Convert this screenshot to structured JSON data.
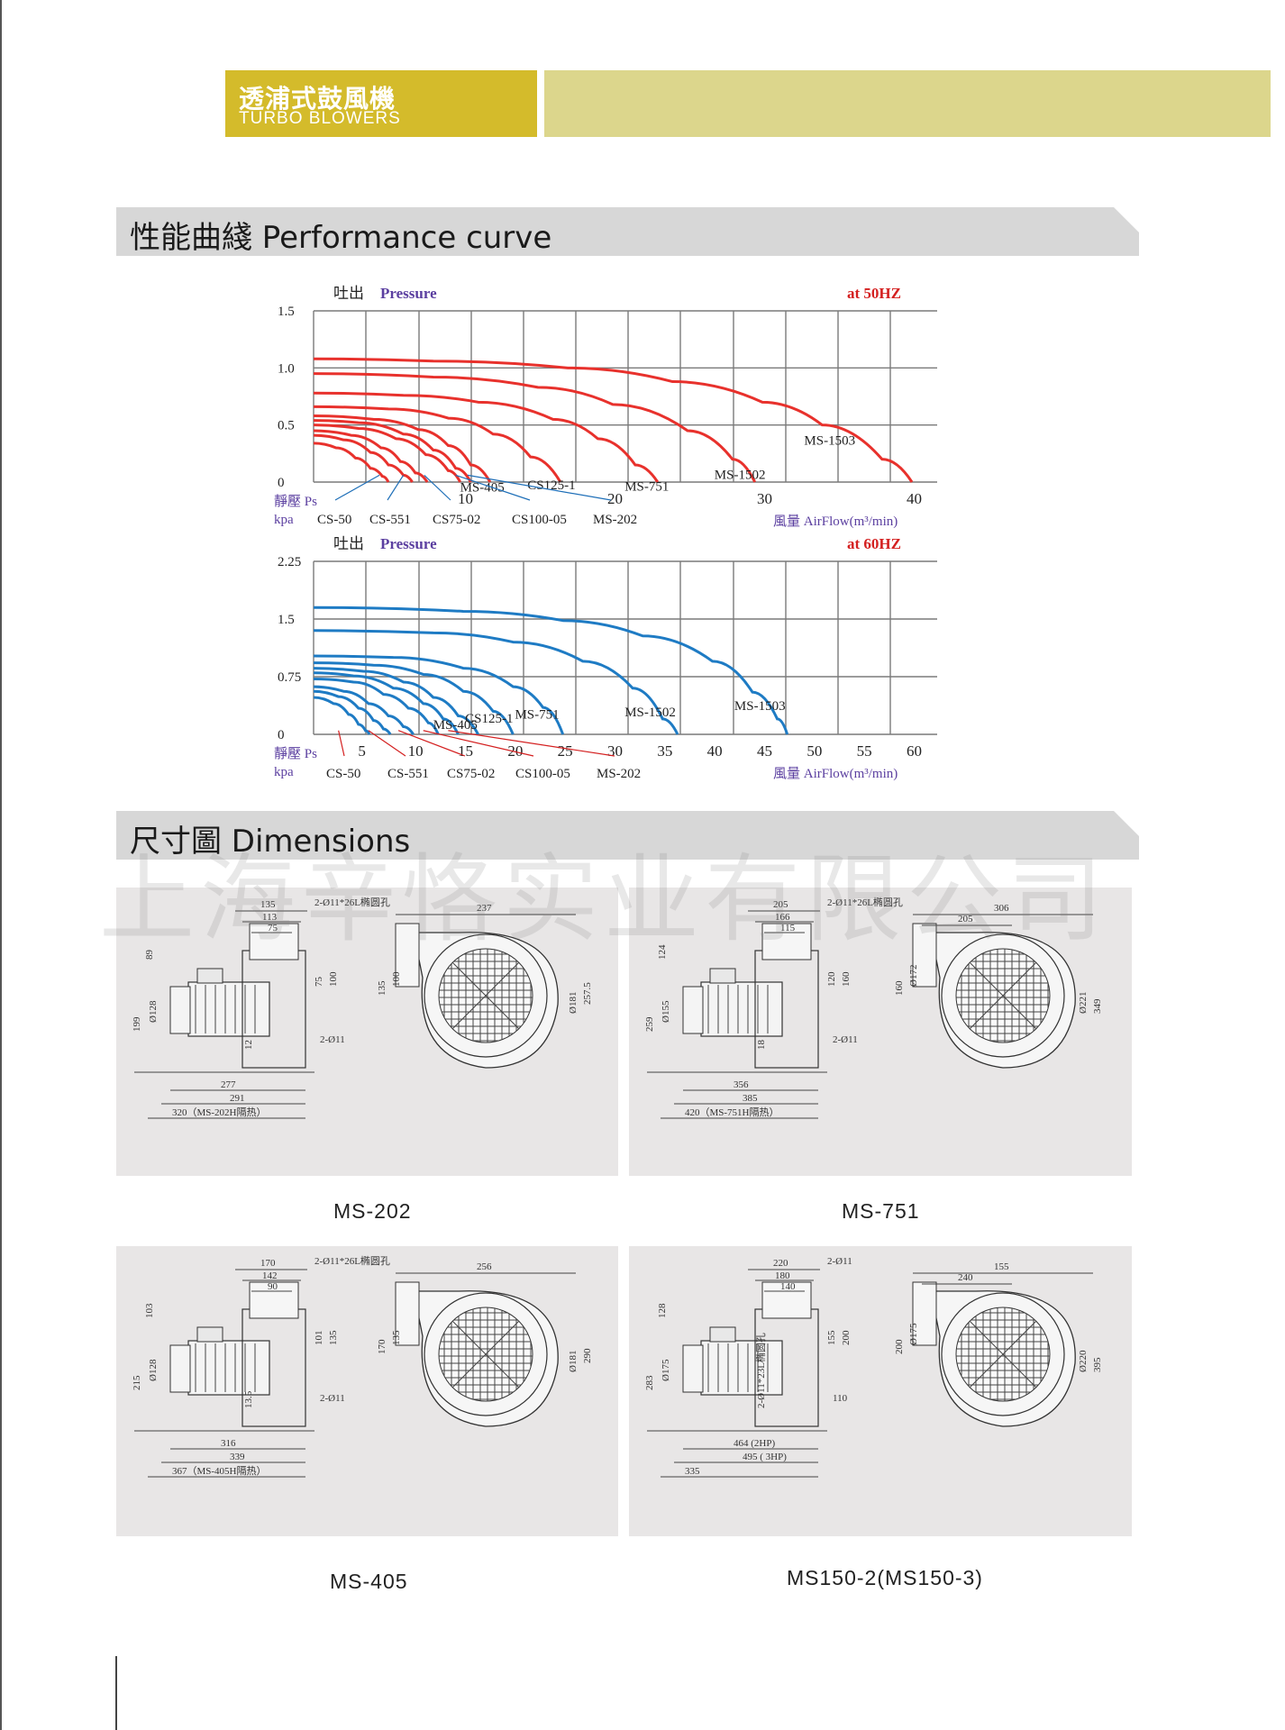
{
  "header": {
    "title_zh": "透浦式鼓風機",
    "title_en": "TURBO BLOWERS"
  },
  "colors": {
    "header_gold": "#d4bb2b",
    "header_light": "#dcd68c",
    "curve_50hz": "#e8312c",
    "curve_60hz": "#1e7bc4",
    "section_bar": "#d7d7d7",
    "panel_bg": "#e8e6e6"
  },
  "sections": {
    "performance": "性能曲綫 Performance curve",
    "dimensions": "尺寸圖 Dimensions"
  },
  "chart_data": [
    {
      "type": "line",
      "title": "at 50HZ",
      "ylabel_zh": "吐出",
      "ylabel_en": "Pressure",
      "y_caption_zh": "靜壓 Ps",
      "y_unit": "kpa",
      "xlabel_zh": "風量",
      "xlabel_en": "AirFlow(m³/min)",
      "xlim": [
        0,
        40
      ],
      "ylim": [
        0,
        1.5
      ],
      "x_ticks": [
        "10",
        "20",
        "30",
        "40"
      ],
      "y_ticks": [
        "1.5",
        "1.0",
        "0.5",
        "0"
      ],
      "grid": true,
      "series": [
        {
          "name": "MS-1503",
          "x": [
            0,
            8,
            17,
            24,
            30,
            34,
            38,
            40
          ],
          "y": [
            1.08,
            1.06,
            1.0,
            0.88,
            0.7,
            0.5,
            0.2,
            0
          ]
        },
        {
          "name": "MS-1502",
          "x": [
            0,
            8,
            15,
            20,
            25,
            28,
            29.5
          ],
          "y": [
            0.95,
            0.92,
            0.83,
            0.68,
            0.45,
            0.2,
            0
          ]
        },
        {
          "name": "MS-751",
          "x": [
            0,
            6,
            11,
            16,
            19,
            21.5,
            23
          ],
          "y": [
            0.78,
            0.76,
            0.7,
            0.55,
            0.38,
            0.15,
            0
          ]
        },
        {
          "name": "CS125-1",
          "x": [
            0,
            5,
            9,
            12,
            14.5,
            16.5
          ],
          "y": [
            0.66,
            0.64,
            0.56,
            0.42,
            0.22,
            0
          ]
        },
        {
          "name": "MS-405",
          "x": [
            0,
            4,
            7,
            9,
            10.5,
            11.8
          ],
          "y": [
            0.58,
            0.55,
            0.46,
            0.32,
            0.15,
            0
          ]
        },
        {
          "name": "MS-202",
          "x": [
            0,
            3,
            6,
            8,
            9.5,
            10.5
          ],
          "y": [
            0.54,
            0.52,
            0.42,
            0.28,
            0.12,
            0
          ]
        },
        {
          "name": "CS100-05",
          "x": [
            0,
            3,
            5.5,
            7.5,
            9,
            9.8
          ],
          "y": [
            0.5,
            0.47,
            0.38,
            0.24,
            0.1,
            0
          ]
        },
        {
          "name": "CS75-02",
          "x": [
            0,
            2.5,
            4.5,
            5.8,
            6.8,
            7.6
          ],
          "y": [
            0.45,
            0.41,
            0.3,
            0.18,
            0.08,
            0
          ]
        },
        {
          "name": "CS-551",
          "x": [
            0,
            2,
            3.8,
            5,
            6,
            6.6
          ],
          "y": [
            0.41,
            0.37,
            0.26,
            0.15,
            0.06,
            0
          ]
        },
        {
          "name": "CS-50",
          "x": [
            0,
            1.5,
            2.8,
            3.8,
            4.6,
            5
          ],
          "y": [
            0.34,
            0.3,
            0.21,
            0.12,
            0.05,
            0
          ]
        }
      ],
      "pointer_labels": [
        "CS-50",
        "CS-551",
        "CS75-02",
        "CS100-05",
        "MS-202"
      ]
    },
    {
      "type": "line",
      "title": "at 60HZ",
      "ylabel_zh": "吐出",
      "ylabel_en": "Pressure",
      "y_caption_zh": "靜壓 Ps",
      "y_unit": "kpa",
      "xlabel_zh": "風量",
      "xlabel_en": "AirFlow(m³/min)",
      "xlim": [
        0,
        60
      ],
      "ylim": [
        0,
        2.25
      ],
      "x_ticks": [
        "5",
        "10",
        "15",
        "20",
        "25",
        "30",
        "35",
        "40",
        "45",
        "50",
        "55",
        "60"
      ],
      "y_ticks": [
        "2.25",
        "1.5",
        "0.75",
        "0"
      ],
      "grid": true,
      "series": [
        {
          "name": "MS-1503",
          "x": [
            0,
            15,
            25,
            33,
            40,
            44,
            46.5,
            47.5
          ],
          "y": [
            1.65,
            1.6,
            1.48,
            1.28,
            0.95,
            0.55,
            0.2,
            0
          ]
        },
        {
          "name": "MS-1502",
          "x": [
            0,
            12,
            20,
            27,
            32,
            35,
            36.5
          ],
          "y": [
            1.35,
            1.32,
            1.2,
            0.95,
            0.6,
            0.2,
            0
          ]
        },
        {
          "name": "MS-751",
          "x": [
            0,
            8,
            15,
            20,
            23,
            25
          ],
          "y": [
            1.02,
            1.0,
            0.86,
            0.62,
            0.35,
            0
          ]
        },
        {
          "name": "CS125-1",
          "x": [
            0,
            6,
            11,
            15,
            18,
            20
          ],
          "y": [
            0.93,
            0.9,
            0.78,
            0.56,
            0.3,
            0
          ]
        },
        {
          "name": "MS-405",
          "x": [
            0,
            5,
            9,
            12,
            14.5,
            16.5
          ],
          "y": [
            0.86,
            0.82,
            0.68,
            0.48,
            0.24,
            0
          ]
        },
        {
          "name": "MS-202",
          "x": [
            0,
            4,
            8,
            11,
            13,
            14.5
          ],
          "y": [
            0.8,
            0.76,
            0.6,
            0.4,
            0.2,
            0
          ]
        },
        {
          "name": "CS100-05",
          "x": [
            0,
            4,
            7,
            9.5,
            11.5,
            12.5
          ],
          "y": [
            0.72,
            0.68,
            0.52,
            0.34,
            0.15,
            0
          ]
        },
        {
          "name": "CS75-02",
          "x": [
            0,
            3,
            5.5,
            7.5,
            9,
            10
          ],
          "y": [
            0.62,
            0.56,
            0.4,
            0.24,
            0.1,
            0
          ]
        },
        {
          "name": "CS-551",
          "x": [
            0,
            2.5,
            4.5,
            6,
            7,
            7.7
          ],
          "y": [
            0.56,
            0.49,
            0.34,
            0.18,
            0.07,
            0
          ]
        },
        {
          "name": "CS-50",
          "x": [
            0,
            2,
            3.5,
            4.5,
            5.2,
            5.6
          ],
          "y": [
            0.48,
            0.4,
            0.26,
            0.13,
            0.05,
            0
          ]
        }
      ],
      "pointer_labels": [
        "CS-50",
        "CS-551",
        "CS75-02",
        "CS100-05",
        "MS-202"
      ]
    }
  ],
  "watermark": "上海辛恪实业有限公司",
  "drawings": [
    {
      "caption": "MS-202",
      "dims": [
        "135",
        "113",
        "75",
        "2-Ø11*26L椭圆孔",
        "89",
        "Ø128",
        "199",
        "75",
        "100",
        "12",
        "2-Ø11",
        "277",
        "291",
        "320（MS-202H隔热）",
        "237",
        "135",
        "100",
        "Ø181",
        "257.5"
      ]
    },
    {
      "caption": "MS-751",
      "dims": [
        "205",
        "166",
        "115",
        "2-Ø11*26L椭圆孔",
        "124",
        "Ø155",
        "259",
        "120",
        "160",
        "18",
        "2-Ø11",
        "356",
        "385",
        "420（MS-751H隔热）",
        "306",
        "205",
        "160",
        "Ø172",
        "Ø221",
        "349"
      ]
    },
    {
      "caption": "MS-405",
      "dims": [
        "170",
        "142",
        "90",
        "2-Ø11*26L椭圆孔",
        "103",
        "Ø128",
        "215",
        "101",
        "135",
        "13.5",
        "2-Ø11",
        "316",
        "339",
        "367（MS-405H隔热）",
        "256",
        "170",
        "135",
        "Ø181",
        "290"
      ]
    },
    {
      "caption": "MS150-2(MS150-3)",
      "dims": [
        "220",
        "180",
        "140",
        "2-Ø11",
        "128",
        "Ø175",
        "283",
        "155",
        "200",
        "2-Ø11*23L椭圆孔",
        "110",
        "464 (2HP)",
        "495 ( 3HP)",
        "335",
        "155",
        "240",
        "200",
        "Ø175",
        "Ø220",
        "395"
      ]
    }
  ]
}
